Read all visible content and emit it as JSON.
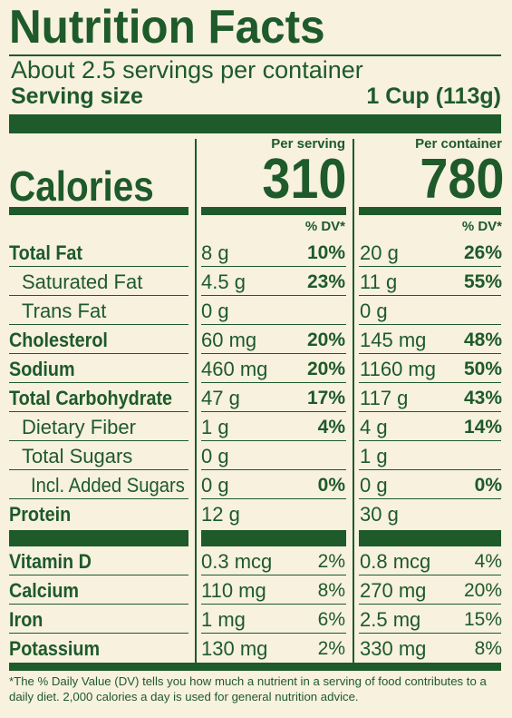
{
  "title": "Nutrition Facts",
  "servings_per_container": "About 2.5 servings per container",
  "serving_size": {
    "label": "Serving size",
    "value": "1 Cup (113g)"
  },
  "columns": {
    "per_serving": "Per serving",
    "per_container": "Per container"
  },
  "calories": {
    "label": "Calories",
    "per_serving": "310",
    "per_container": "780"
  },
  "dv_header": "% DV*",
  "nutrients": [
    {
      "name": "Total Fat",
      "bold": true,
      "indent": 0,
      "serving_amount": "8 g",
      "serving_dv": "10%",
      "container_amount": "20 g",
      "container_dv": "26%"
    },
    {
      "name": "Saturated Fat",
      "bold": false,
      "indent": 1,
      "serving_amount": "4.5 g",
      "serving_dv": "23%",
      "container_amount": "11 g",
      "container_dv": "55%"
    },
    {
      "name": "Trans Fat",
      "bold": false,
      "indent": 1,
      "serving_amount": "0 g",
      "serving_dv": "",
      "container_amount": "0 g",
      "container_dv": ""
    },
    {
      "name": "Cholesterol",
      "bold": true,
      "indent": 0,
      "serving_amount": "60 mg",
      "serving_dv": "20%",
      "container_amount": "145 mg",
      "container_dv": "48%"
    },
    {
      "name": "Sodium",
      "bold": true,
      "indent": 0,
      "serving_amount": "460 mg",
      "serving_dv": "20%",
      "container_amount": "1160 mg",
      "container_dv": "50%"
    },
    {
      "name": "Total Carbohydrate",
      "bold": true,
      "indent": 0,
      "serving_amount": "47 g",
      "serving_dv": "17%",
      "container_amount": "117 g",
      "container_dv": "43%"
    },
    {
      "name": "Dietary Fiber",
      "bold": false,
      "indent": 1,
      "serving_amount": "1 g",
      "serving_dv": "4%",
      "container_amount": "4 g",
      "container_dv": "14%"
    },
    {
      "name": "Total Sugars",
      "bold": false,
      "indent": 1,
      "serving_amount": "0 g",
      "serving_dv": "",
      "container_amount": "1 g",
      "container_dv": ""
    },
    {
      "name": "Incl. Added Sugars",
      "bold": false,
      "indent": 2,
      "serving_amount": "0 g",
      "serving_dv": "0%",
      "container_amount": "0 g",
      "container_dv": "0%"
    },
    {
      "name": "Protein",
      "bold": true,
      "indent": 0,
      "serving_amount": "12 g",
      "serving_dv": "",
      "container_amount": "30 g",
      "container_dv": ""
    }
  ],
  "vitamins": [
    {
      "name": "Vitamin D",
      "serving_amount": "0.3 mcg",
      "serving_dv": "2%",
      "container_amount": "0.8 mcg",
      "container_dv": "4%"
    },
    {
      "name": "Calcium",
      "serving_amount": "110 mg",
      "serving_dv": "8%",
      "container_amount": "270 mg",
      "container_dv": "20%"
    },
    {
      "name": "Iron",
      "serving_amount": "1 mg",
      "serving_dv": "6%",
      "container_amount": "2.5 mg",
      "container_dv": "15%"
    },
    {
      "name": "Potassium",
      "serving_amount": "130 mg",
      "serving_dv": "2%",
      "container_amount": "330 mg",
      "container_dv": "8%"
    }
  ],
  "footnote": "*The % Daily Value (DV) tells you how much a nutrient in a serving of food contributes to a daily diet. 2,000 calories a day is used for general nutrition advice.",
  "colors": {
    "ink": "#1e5a2a",
    "background": "#f7f1de"
  }
}
